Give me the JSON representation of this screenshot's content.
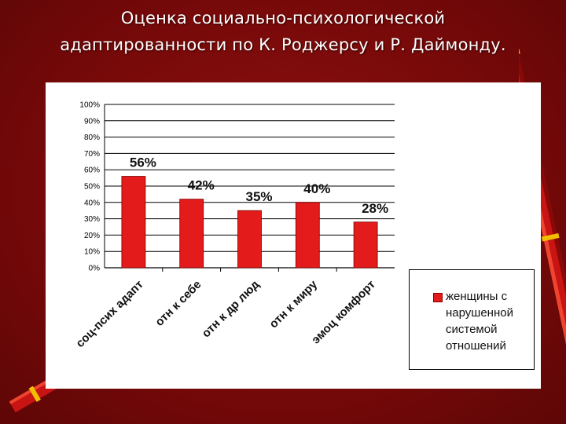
{
  "title": {
    "line1": "Оценка социально-психологической",
    "line2": "адаптированности по К. Роджерсу и  Р. Даймонду."
  },
  "chart_data": {
    "type": "bar",
    "categories": [
      "соц-псих адапт",
      "отн к себе",
      "отн к др люд",
      "отн к миру",
      "эмоц комфорт"
    ],
    "series": [
      {
        "name": "женщины с нарушенной системой отношений",
        "values": [
          56,
          42,
          35,
          40,
          28
        ]
      }
    ],
    "data_labels": [
      "56%",
      "42%",
      "35%",
      "40%",
      "28%"
    ],
    "y_ticks": [
      "0%",
      "10%",
      "20%",
      "30%",
      "40%",
      "50%",
      "60%",
      "70%",
      "80%",
      "90%",
      "100%"
    ],
    "ylim": [
      0,
      100
    ],
    "grid": true,
    "legend_position": "bottom-right",
    "bar_color": "#e31b1b",
    "xlabel": "",
    "ylabel": ""
  },
  "colors": {
    "background": "#7a0a0a",
    "panel": "#ffffff",
    "bar": "#e31b1b"
  },
  "decorations": {
    "left_icon": "pencil-icon",
    "right_icon": "pencil-icon"
  }
}
